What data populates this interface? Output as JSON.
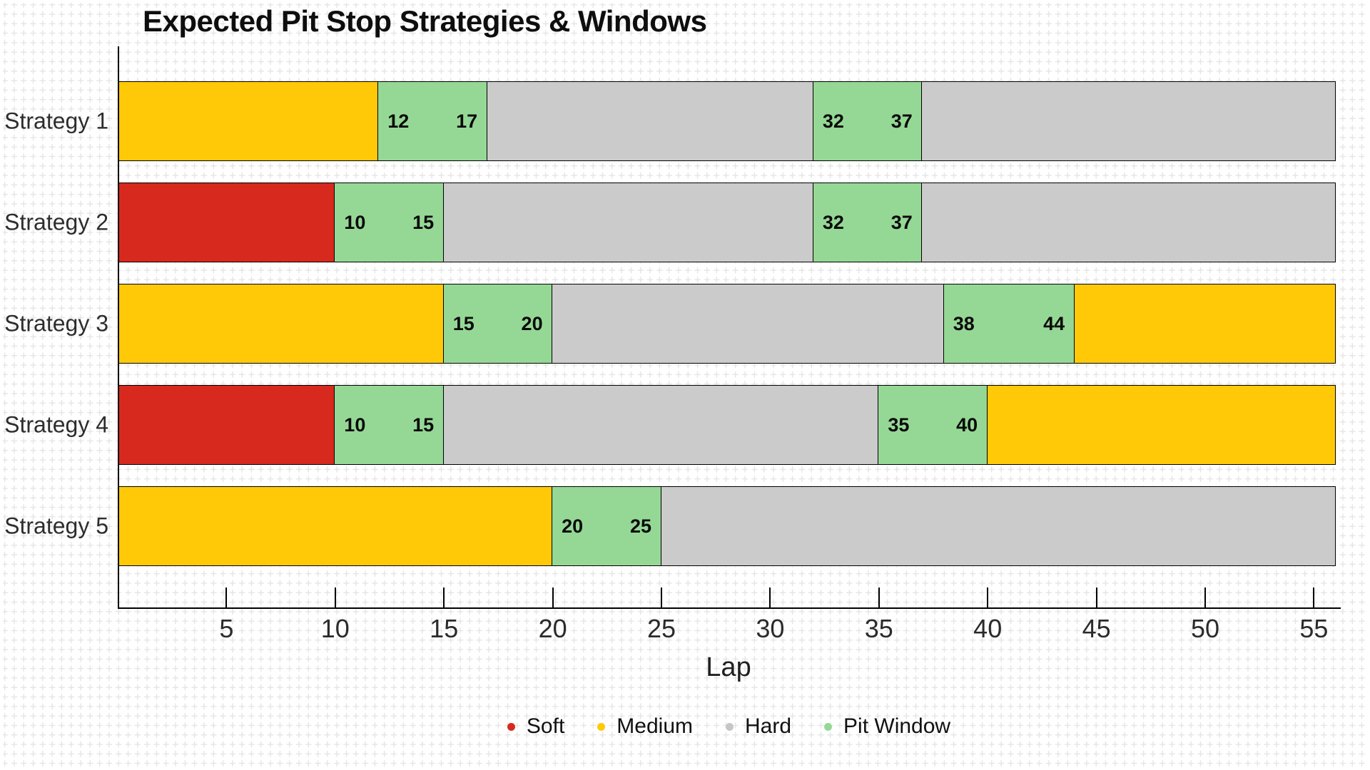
{
  "page": {
    "title": "Expected Pit Stop Strategies & Windows"
  },
  "chart_data": {
    "type": "bar",
    "subtype": "horizontal-stacked-gantt",
    "title": "Expected Pit Stop Strategies & Windows",
    "xlabel": "Lap",
    "x_range": [
      0,
      56.2
    ],
    "bar_span": [
      0,
      56
    ],
    "x_ticks": [
      5,
      10,
      15,
      20,
      25,
      30,
      35,
      40,
      45,
      50,
      55
    ],
    "grid": "light cross-hatch background grid",
    "legend_position": "bottom-center",
    "colors": {
      "soft": "#d7291d",
      "medium": "#ffc907",
      "hard": "#cbcbcb",
      "pit_window": "#95d895",
      "segment_border": "#000000",
      "grid_line": "#e3e3e3"
    },
    "categories": [
      "Strategy 1",
      "Strategy 2",
      "Strategy 3",
      "Strategy 4",
      "Strategy 5"
    ],
    "rows": [
      {
        "name": "Strategy 1",
        "segments": [
          {
            "compound": "medium",
            "start": 0,
            "end": 12
          },
          {
            "compound": "pit_window",
            "start": 12,
            "end": 17,
            "label_start": "12",
            "label_end": "17"
          },
          {
            "compound": "hard",
            "start": 17,
            "end": 32
          },
          {
            "compound": "pit_window",
            "start": 32,
            "end": 37,
            "label_start": "32",
            "label_end": "37"
          },
          {
            "compound": "hard",
            "start": 37,
            "end": 56
          }
        ]
      },
      {
        "name": "Strategy 2",
        "segments": [
          {
            "compound": "soft",
            "start": 0,
            "end": 10
          },
          {
            "compound": "pit_window",
            "start": 10,
            "end": 15,
            "label_start": "10",
            "label_end": "15"
          },
          {
            "compound": "hard",
            "start": 15,
            "end": 32
          },
          {
            "compound": "pit_window",
            "start": 32,
            "end": 37,
            "label_start": "32",
            "label_end": "37"
          },
          {
            "compound": "hard",
            "start": 37,
            "end": 56
          }
        ]
      },
      {
        "name": "Strategy 3",
        "segments": [
          {
            "compound": "medium",
            "start": 0,
            "end": 15
          },
          {
            "compound": "pit_window",
            "start": 15,
            "end": 20,
            "label_start": "15",
            "label_end": "20"
          },
          {
            "compound": "hard",
            "start": 20,
            "end": 38
          },
          {
            "compound": "pit_window",
            "start": 38,
            "end": 44,
            "label_start": "38",
            "label_end": "44"
          },
          {
            "compound": "medium",
            "start": 44,
            "end": 56
          }
        ]
      },
      {
        "name": "Strategy 4",
        "segments": [
          {
            "compound": "soft",
            "start": 0,
            "end": 10
          },
          {
            "compound": "pit_window",
            "start": 10,
            "end": 15,
            "label_start": "10",
            "label_end": "15"
          },
          {
            "compound": "hard",
            "start": 15,
            "end": 35
          },
          {
            "compound": "pit_window",
            "start": 35,
            "end": 40,
            "label_start": "35",
            "label_end": "40"
          },
          {
            "compound": "medium",
            "start": 40,
            "end": 56
          }
        ]
      },
      {
        "name": "Strategy 5",
        "segments": [
          {
            "compound": "medium",
            "start": 0,
            "end": 20
          },
          {
            "compound": "pit_window",
            "start": 20,
            "end": 25,
            "label_start": "20",
            "label_end": "25"
          },
          {
            "compound": "hard",
            "start": 25,
            "end": 56
          }
        ]
      }
    ],
    "legend": [
      {
        "label": "Soft",
        "color": "#d7291d"
      },
      {
        "label": "Medium",
        "color": "#ffc907"
      },
      {
        "label": "Hard",
        "color": "#c6c6c6"
      },
      {
        "label": "Pit Window",
        "color": "#95d895"
      }
    ]
  }
}
